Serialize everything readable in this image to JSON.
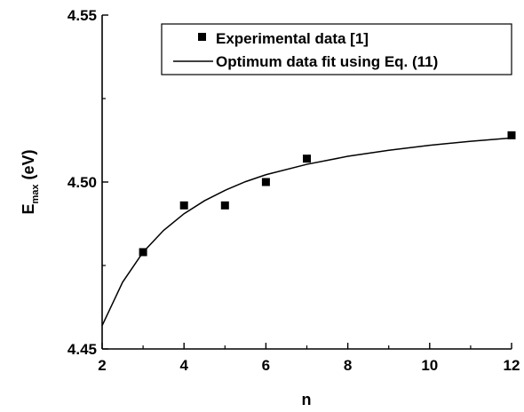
{
  "chart_data": {
    "type": "scatter",
    "title": "",
    "xlabel": "n",
    "ylabel": {
      "main": "E",
      "subscript": "max",
      "unit": " (eV)"
    },
    "xlim": [
      2,
      12
    ],
    "ylim": [
      4.45,
      4.55
    ],
    "x_ticks": [
      "2",
      "4",
      "6",
      "8",
      "10",
      "12"
    ],
    "y_ticks": [
      "4.45",
      "4.50",
      "4.55"
    ],
    "grid": false,
    "legend_position": "top-right",
    "series": [
      {
        "name": "Experimental data [1]",
        "kind": "points",
        "color": "#000000",
        "x": [
          3,
          4,
          5,
          6,
          7,
          12
        ],
        "y": [
          4.479,
          4.493,
          4.493,
          4.5,
          4.507,
          4.514
        ]
      },
      {
        "name": "Optimum data fit using Eq. (11)",
        "kind": "line",
        "color": "#000000",
        "x": [
          2.0,
          2.5,
          3.0,
          3.5,
          4.0,
          4.5,
          5.0,
          5.5,
          6.0,
          7.0,
          8.0,
          9.0,
          10.0,
          11.0,
          12.0
        ],
        "y": [
          4.457,
          4.47,
          4.479,
          4.4855,
          4.4905,
          4.4944,
          4.4975,
          4.5001,
          4.5022,
          4.5053,
          4.5077,
          4.5095,
          4.511,
          4.5122,
          4.5132
        ]
      }
    ]
  }
}
